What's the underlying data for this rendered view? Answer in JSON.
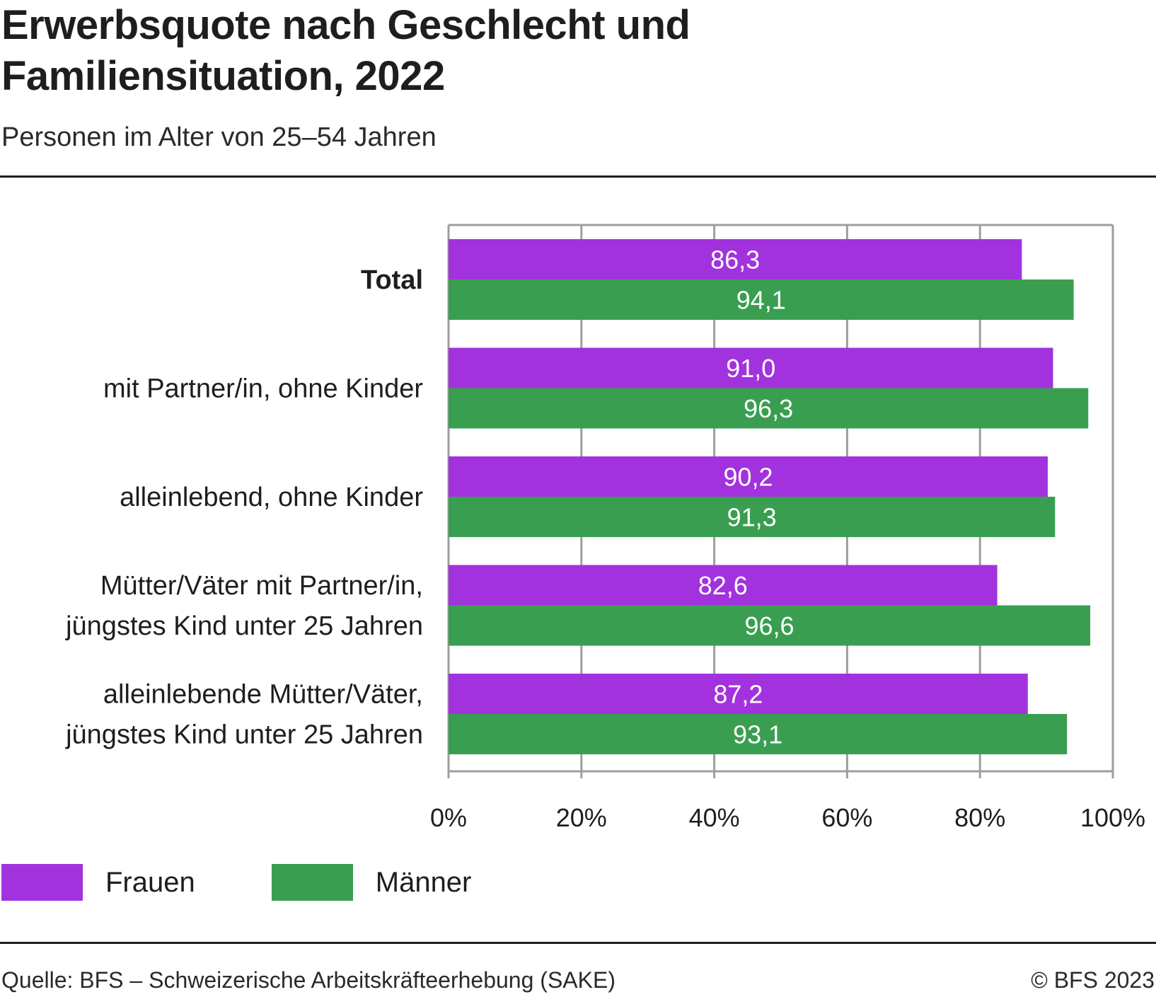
{
  "header": {
    "title": "Erwerbsquote nach Geschlecht und Familiensituation, 2022",
    "subtitle": "Personen im Alter von 25–54 Jahren"
  },
  "colors": {
    "frauen": "#a232de",
    "maenner": "#3a9e50",
    "grid": "#9e9e9e",
    "text": "#1e1e1e"
  },
  "chart_data": {
    "type": "bar",
    "orientation": "horizontal",
    "title": "Erwerbsquote nach Geschlecht und Familiensituation, 2022",
    "subtitle": "Personen im Alter von 25–54 Jahren",
    "xlabel": "",
    "ylabel": "",
    "xlim": [
      0,
      100
    ],
    "grid": true,
    "categories": [
      [
        "Total"
      ],
      [
        "mit Partner/in, ohne Kinder"
      ],
      [
        "alleinlebend, ohne Kinder"
      ],
      [
        "Mütter/Väter mit Partner/in,",
        "jüngstes Kind unter 25 Jahren"
      ],
      [
        "alleinlebende Mütter/Väter,",
        "jüngstes Kind unter 25 Jahren"
      ]
    ],
    "bold_categories": [
      0
    ],
    "series": [
      {
        "name": "Frauen",
        "color": "#a232de",
        "values": [
          86.3,
          91.0,
          90.2,
          82.6,
          87.2
        ],
        "labels": [
          "86,3",
          "91,0",
          "90,2",
          "82,6",
          "87,2"
        ]
      },
      {
        "name": "Männer",
        "color": "#3a9e50",
        "values": [
          94.1,
          96.3,
          91.3,
          96.6,
          93.1
        ],
        "labels": [
          "94,1",
          "96,3",
          "91,3",
          "96,6",
          "93,1"
        ]
      }
    ],
    "x_ticks": [
      0,
      20,
      40,
      60,
      80,
      100
    ],
    "x_tick_labels": [
      "0%",
      "20%",
      "40%",
      "60%",
      "80%",
      "100%"
    ],
    "legend_position": "bottom-left"
  },
  "legend": {
    "items": [
      {
        "label": "Frauen"
      },
      {
        "label": "Männer"
      }
    ]
  },
  "footer": {
    "source": "Quelle: BFS – Schweizerische Arbeitskräfteerhebung (SAKE)",
    "copyright": "© BFS 2023"
  }
}
